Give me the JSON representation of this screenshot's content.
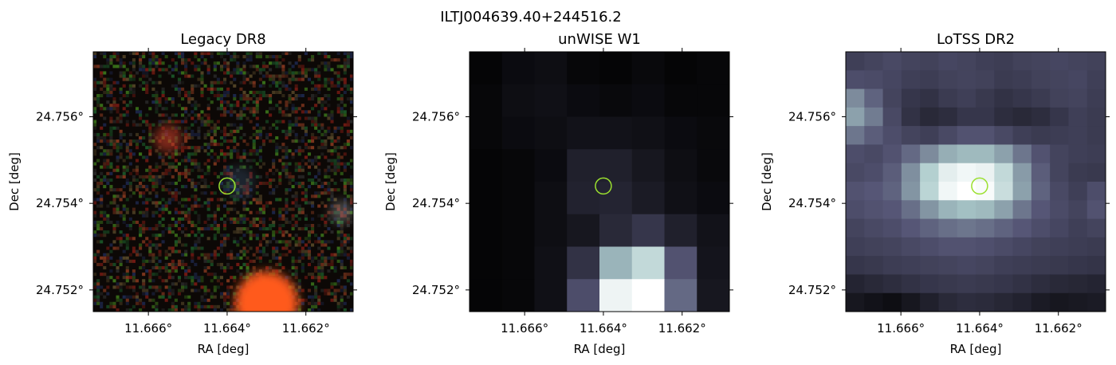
{
  "figure": {
    "suptitle": "ILTJ004639.40+244516.2"
  },
  "chart_data": [
    {
      "type": "heatmap",
      "title": "Legacy DR8",
      "xlabel": "RA [deg]",
      "ylabel": "Dec [deg]",
      "x_ticks": [
        11.666,
        11.664,
        11.662
      ],
      "x_tick_labels": [
        "11.666°",
        "11.664°",
        "11.662°"
      ],
      "y_ticks": [
        24.756,
        24.754,
        24.752
      ],
      "y_tick_labels": [
        "24.756°",
        "24.754°",
        "24.752°"
      ],
      "xlim": [
        11.6674,
        11.6608
      ],
      "ylim": [
        24.7515,
        24.7575
      ],
      "target": {
        "ra": 11.664,
        "dec": 24.7544,
        "marker": "circle",
        "color": "#9be02f"
      },
      "image": {
        "style": "rgb-noise",
        "background": "#0c0806",
        "sources": [
          {
            "ra": 11.663,
            "dec": 24.7517,
            "radius_deg": 0.0008,
            "color": "#ff5a1e",
            "peak": 1.0
          },
          {
            "ra": 11.6655,
            "dec": 24.7555,
            "radius_deg": 0.00035,
            "color": "#c83c28",
            "peak": 0.6
          },
          {
            "ra": 11.6637,
            "dec": 24.7545,
            "radius_deg": 0.0004,
            "color": "#3c5a78",
            "peak": 0.35
          },
          {
            "ra": 11.6611,
            "dec": 24.7538,
            "radius_deg": 0.0003,
            "color": "#b4b4b4",
            "peak": 0.35
          }
        ]
      }
    },
    {
      "type": "heatmap",
      "title": "unWISE W1",
      "xlabel": "RA [deg]",
      "ylabel": "Dec [deg]",
      "x_ticks": [
        11.666,
        11.664,
        11.662
      ],
      "x_tick_labels": [
        "11.666°",
        "11.664°",
        "11.662°"
      ],
      "y_ticks": [
        24.756,
        24.754,
        24.752
      ],
      "y_tick_labels": [
        "24.756°",
        "24.754°",
        "24.752°"
      ],
      "xlim": [
        11.6674,
        11.6608
      ],
      "ylim": [
        24.7515,
        24.7575
      ],
      "target": {
        "ra": 11.664,
        "dec": 24.7544,
        "marker": "circle",
        "color": "#9be02f"
      },
      "image": {
        "style": "grid",
        "colormap": "bone",
        "cols": 8,
        "rows": 8,
        "values": [
          [
            0.02,
            0.05,
            0.06,
            0.03,
            0.02,
            0.04,
            0.02,
            0.03
          ],
          [
            0.03,
            0.06,
            0.07,
            0.05,
            0.04,
            0.05,
            0.03,
            0.03
          ],
          [
            0.03,
            0.05,
            0.06,
            0.08,
            0.08,
            0.07,
            0.05,
            0.04
          ],
          [
            0.02,
            0.03,
            0.05,
            0.14,
            0.14,
            0.1,
            0.06,
            0.04
          ],
          [
            0.02,
            0.03,
            0.06,
            0.15,
            0.16,
            0.12,
            0.07,
            0.05
          ],
          [
            0.02,
            0.03,
            0.06,
            0.1,
            0.18,
            0.24,
            0.14,
            0.08
          ],
          [
            0.02,
            0.03,
            0.07,
            0.22,
            0.68,
            0.82,
            0.36,
            0.09
          ],
          [
            0.02,
            0.03,
            0.07,
            0.34,
            0.95,
            1.0,
            0.44,
            0.1
          ]
        ]
      }
    },
    {
      "type": "heatmap",
      "title": "LoTSS DR2",
      "xlabel": "RA [deg]",
      "ylabel": "Dec [deg]",
      "x_ticks": [
        11.666,
        11.664,
        11.662
      ],
      "x_tick_labels": [
        "11.666°",
        "11.664°",
        "11.662°"
      ],
      "y_ticks": [
        24.756,
        24.754,
        24.752
      ],
      "y_tick_labels": [
        "24.756°",
        "24.754°",
        "24.752°"
      ],
      "xlim": [
        11.6674,
        11.6608
      ],
      "ylim": [
        24.7515,
        24.7575
      ],
      "target": {
        "ra": 11.664,
        "dec": 24.7544,
        "marker": "circle",
        "color": "#9be02f"
      },
      "image": {
        "style": "grid",
        "colormap": "bone",
        "cols": 14,
        "rows": 14,
        "values": [
          [
            0.28,
            0.3,
            0.32,
            0.3,
            0.29,
            0.31,
            0.3,
            0.28,
            0.27,
            0.29,
            0.3,
            0.31,
            0.3,
            0.29
          ],
          [
            0.34,
            0.33,
            0.31,
            0.28,
            0.27,
            0.29,
            0.3,
            0.29,
            0.26,
            0.27,
            0.29,
            0.3,
            0.31,
            0.28
          ],
          [
            0.55,
            0.42,
            0.3,
            0.24,
            0.22,
            0.26,
            0.28,
            0.25,
            0.22,
            0.24,
            0.26,
            0.29,
            0.3,
            0.27
          ],
          [
            0.62,
            0.5,
            0.32,
            0.22,
            0.18,
            0.2,
            0.24,
            0.24,
            0.2,
            0.18,
            0.2,
            0.24,
            0.28,
            0.26
          ],
          [
            0.48,
            0.4,
            0.34,
            0.3,
            0.28,
            0.32,
            0.36,
            0.36,
            0.32,
            0.28,
            0.26,
            0.27,
            0.28,
            0.26
          ],
          [
            0.34,
            0.32,
            0.36,
            0.44,
            0.55,
            0.66,
            0.7,
            0.7,
            0.62,
            0.48,
            0.36,
            0.3,
            0.28,
            0.27
          ],
          [
            0.32,
            0.34,
            0.4,
            0.56,
            0.78,
            0.92,
            0.96,
            0.94,
            0.82,
            0.6,
            0.4,
            0.3,
            0.26,
            0.25
          ],
          [
            0.36,
            0.38,
            0.42,
            0.58,
            0.8,
            0.96,
            1.0,
            0.98,
            0.84,
            0.62,
            0.42,
            0.32,
            0.28,
            0.34
          ],
          [
            0.34,
            0.36,
            0.38,
            0.46,
            0.58,
            0.68,
            0.72,
            0.7,
            0.62,
            0.48,
            0.38,
            0.33,
            0.3,
            0.36
          ],
          [
            0.3,
            0.32,
            0.34,
            0.38,
            0.42,
            0.46,
            0.48,
            0.46,
            0.42,
            0.38,
            0.34,
            0.31,
            0.28,
            0.3
          ],
          [
            0.28,
            0.29,
            0.3,
            0.32,
            0.34,
            0.36,
            0.36,
            0.35,
            0.33,
            0.31,
            0.29,
            0.28,
            0.27,
            0.26
          ],
          [
            0.24,
            0.25,
            0.27,
            0.28,
            0.29,
            0.3,
            0.31,
            0.3,
            0.28,
            0.27,
            0.26,
            0.25,
            0.24,
            0.23
          ],
          [
            0.16,
            0.18,
            0.2,
            0.22,
            0.24,
            0.25,
            0.26,
            0.25,
            0.24,
            0.22,
            0.2,
            0.18,
            0.17,
            0.16
          ],
          [
            0.1,
            0.08,
            0.06,
            0.1,
            0.14,
            0.18,
            0.2,
            0.19,
            0.17,
            0.15,
            0.12,
            0.1,
            0.11,
            0.12
          ]
        ]
      }
    }
  ]
}
